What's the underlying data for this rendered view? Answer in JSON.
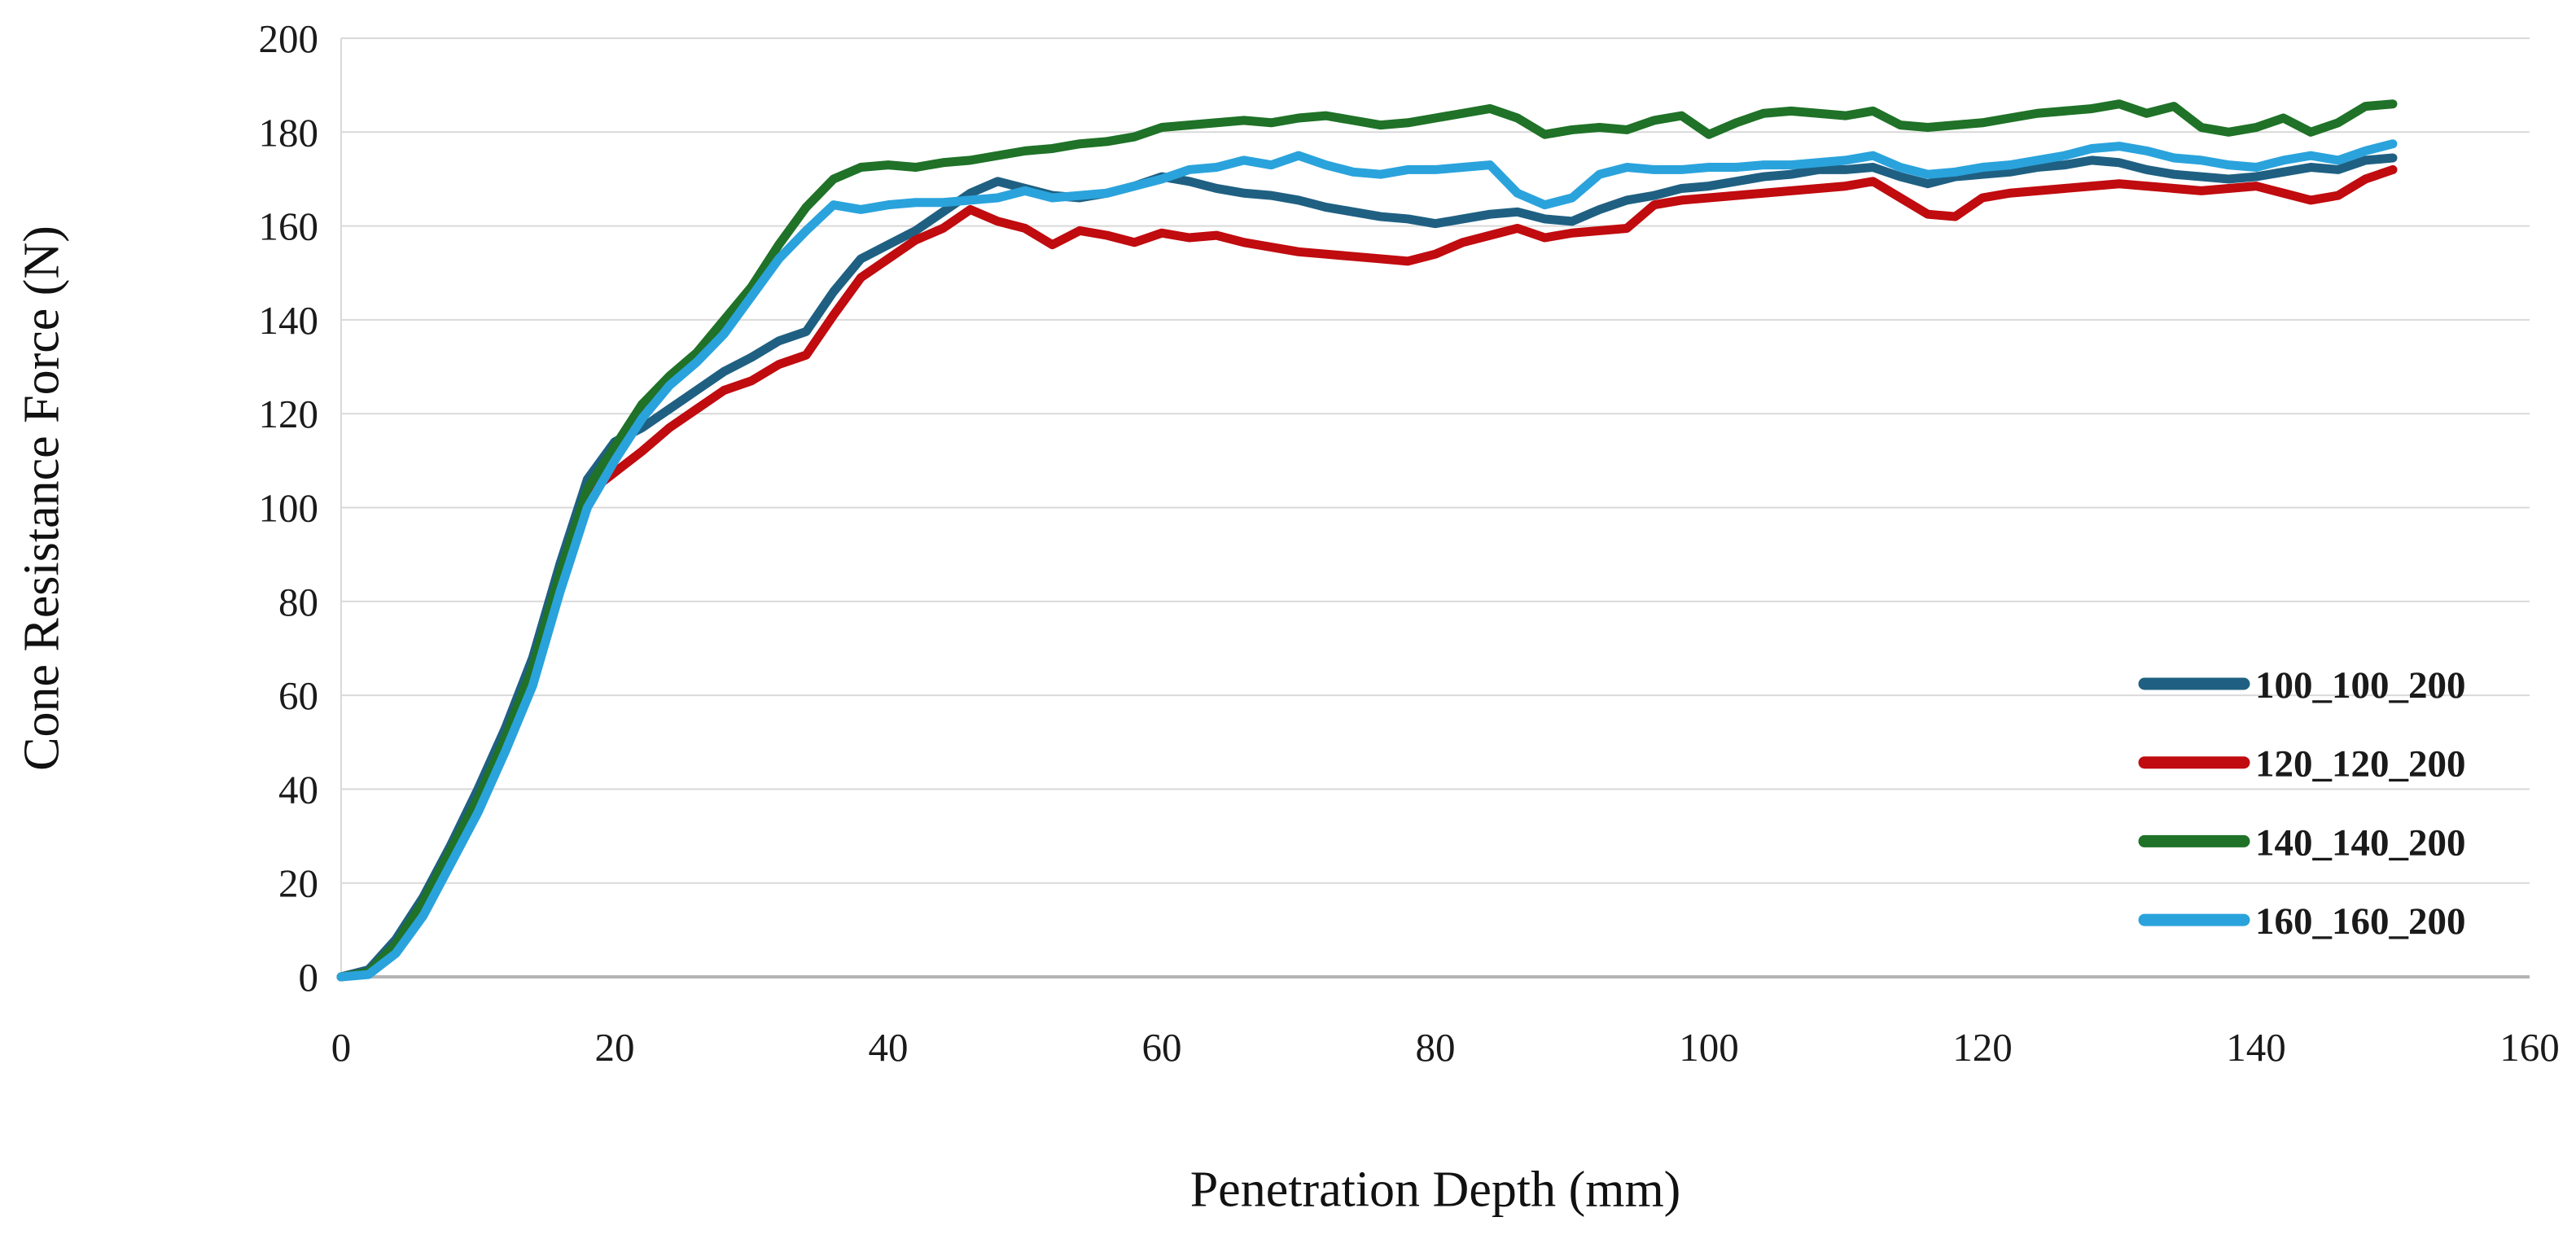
{
  "figure": {
    "background": "#ffffff",
    "gridline_color": "#d9d9d9",
    "baseline_color": "#b3b3b3",
    "text_color": "#1a1a1a"
  },
  "chart_data": {
    "type": "line",
    "title": "",
    "xlabel": "Penetration Depth (mm)",
    "ylabel": "Cone Resistance Force (N)",
    "xlim": [
      0,
      160
    ],
    "ylim": [
      0,
      200
    ],
    "xticks": [
      0,
      20,
      40,
      60,
      80,
      100,
      120,
      140,
      160
    ],
    "yticks": [
      0,
      20,
      40,
      60,
      80,
      100,
      120,
      140,
      160,
      180,
      200
    ],
    "grid": "horizontal",
    "legend_position": "right-middle",
    "x": [
      0,
      2,
      4,
      6,
      8,
      10,
      12,
      14,
      16,
      18,
      20,
      22,
      24,
      26,
      28,
      30,
      32,
      34,
      36,
      38,
      40,
      42,
      44,
      46,
      48,
      50,
      52,
      54,
      56,
      58,
      60,
      62,
      64,
      66,
      68,
      70,
      72,
      74,
      76,
      78,
      80,
      82,
      84,
      86,
      88,
      90,
      92,
      94,
      96,
      98,
      100,
      102,
      104,
      106,
      108,
      110,
      112,
      114,
      116,
      118,
      120,
      122,
      124,
      126,
      128,
      130,
      132,
      134,
      136,
      138,
      140,
      142,
      144,
      146,
      148,
      150
    ],
    "series": [
      {
        "name": "100_100_200",
        "color": "#1f6082",
        "values": [
          0,
          1.5,
          8,
          17,
          28,
          40,
          53,
          68,
          88,
          106,
          114,
          117,
          121,
          125,
          129,
          132,
          135.5,
          137.5,
          146,
          153,
          156,
          159,
          163,
          167,
          169.5,
          168,
          166.5,
          166,
          167,
          168.5,
          170.5,
          169.5,
          168,
          167,
          166.5,
          165.5,
          164,
          163,
          162,
          161.5,
          160.5,
          161.5,
          162.5,
          163,
          161.5,
          161,
          163.5,
          165.5,
          166.5,
          168,
          168.5,
          169.5,
          170.5,
          171,
          172,
          172,
          172.5,
          170.5,
          169,
          170.5,
          171,
          171.5,
          172.5,
          173,
          174,
          173.5,
          172,
          171,
          170.5,
          170,
          170.5,
          171.5,
          172.5,
          172,
          174,
          174.5
        ]
      },
      {
        "name": "120_120_200",
        "color": "#c00b0f",
        "values": [
          0,
          1,
          6,
          15,
          26,
          37,
          50,
          65,
          85,
          103,
          107.5,
          112,
          117,
          121,
          125,
          127,
          130.5,
          132.5,
          141,
          149,
          153,
          157,
          159.5,
          163.5,
          161,
          159.5,
          156,
          159,
          158,
          156.5,
          158.5,
          157.5,
          158,
          156.5,
          155.5,
          154.5,
          154,
          153.5,
          153,
          152.5,
          154,
          156.5,
          158,
          159.5,
          157.5,
          158.5,
          159,
          159.5,
          164.5,
          165.5,
          166,
          166.5,
          167,
          167.5,
          168,
          168.5,
          169.5,
          166,
          162.5,
          162,
          166,
          167,
          167.5,
          168,
          168.5,
          169,
          168.5,
          168,
          167.5,
          168,
          168.5,
          167,
          165.5,
          166.5,
          170,
          172
        ]
      },
      {
        "name": "140_140_200",
        "color": "#1f7227",
        "values": [
          0,
          1,
          7,
          16,
          27,
          38,
          51,
          66,
          86,
          104,
          113,
          122,
          128,
          133,
          140,
          147,
          156,
          164,
          170,
          172.5,
          173,
          172.5,
          173.5,
          174,
          175,
          176,
          176.5,
          177.5,
          178,
          179,
          181,
          181.5,
          182,
          182.5,
          182,
          183,
          183.5,
          182.5,
          181.5,
          182,
          183,
          184,
          185,
          183,
          179.5,
          180.5,
          181,
          180.5,
          182.5,
          183.5,
          179.5,
          182,
          184,
          184.5,
          184,
          183.5,
          184.5,
          181.5,
          181,
          181.5,
          182,
          183,
          184,
          184.5,
          185,
          186,
          184,
          185.5,
          181,
          180,
          181,
          183,
          180,
          182,
          185.5,
          186
        ]
      },
      {
        "name": "160_160_200",
        "color": "#2aa3dc",
        "values": [
          0,
          0.5,
          5,
          13,
          24,
          35,
          48,
          62,
          82,
          100,
          110,
          119,
          126,
          131,
          137,
          145,
          153,
          159,
          164.5,
          163.5,
          164.5,
          165,
          165,
          165.5,
          166,
          167.5,
          166,
          166.5,
          167,
          168.5,
          170,
          172,
          172.5,
          174,
          173,
          175,
          173,
          171.5,
          171,
          172,
          172,
          172.5,
          173,
          167,
          164.5,
          166,
          171,
          172.5,
          172,
          172,
          172.5,
          172.5,
          173,
          173,
          173.5,
          174,
          175,
          172.5,
          171,
          171.5,
          172.5,
          173,
          174,
          175,
          176.5,
          177,
          176,
          174.5,
          174,
          173,
          172.5,
          174,
          175,
          174,
          176,
          177.5
        ]
      }
    ]
  }
}
